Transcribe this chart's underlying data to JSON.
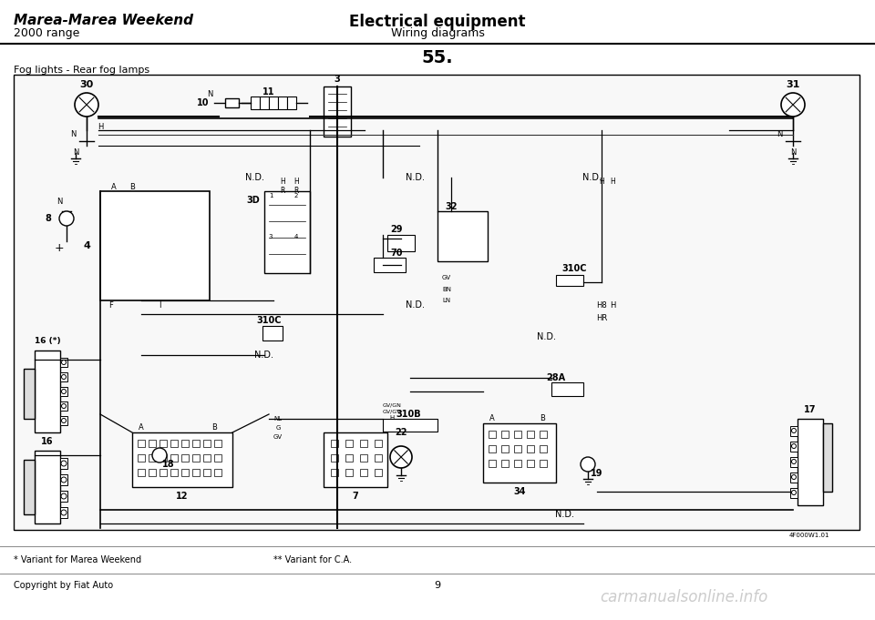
{
  "title_left_line1": "Marea-Marea Weekend",
  "title_left_line2": "2000 range",
  "title_center_line1": "Electrical equipment",
  "title_center_line2": "Wiring diagrams",
  "page_number": "55.",
  "section_title": "Fog lights - Rear fog lamps",
  "footer_left": "* Variant for Marea Weekend",
  "footer_center": "** Variant for C.A.",
  "footer_copyright": "Copyright by Fiat Auto",
  "footer_page": "9",
  "bg_color": "#ffffff",
  "border_color": "#000000",
  "line_color": "#000000",
  "diagram_ref": "4F000W1.01",
  "component_labels": [
    "30",
    "31",
    "8",
    "10",
    "11",
    "3",
    "29",
    "32",
    "70",
    "310C",
    "N.D.",
    "4",
    "3D",
    "310C",
    "310B",
    "N.D.",
    "28A",
    "N.D.",
    "16 (*)",
    "16",
    "18",
    "12",
    "7",
    "22",
    "34",
    "19",
    "17"
  ],
  "watermark": "carmanualsonline.info"
}
